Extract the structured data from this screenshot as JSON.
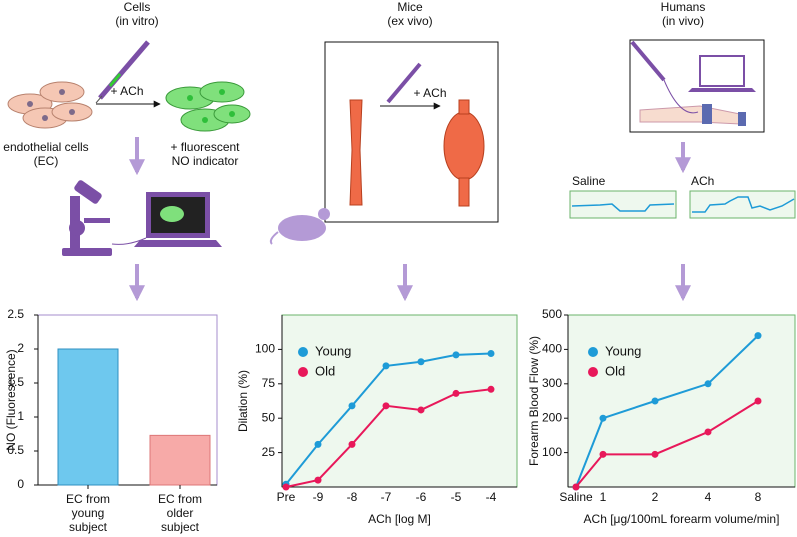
{
  "diagram": {
    "columns": [
      {
        "title": "Cells",
        "subtitle": "(in vitro)"
      },
      {
        "title": "Mice",
        "subtitle": "(ex vivo)"
      },
      {
        "title": "Humans",
        "subtitle": "(in vivo)"
      }
    ],
    "cells": {
      "stimulus": "+ ACh",
      "before_line1": "endothelial cells",
      "before_line2": "(EC)",
      "after_line1": "+ fluorescent",
      "after_line2": "NO indicator"
    },
    "mice": {
      "stimulus": "+ ACh"
    },
    "humans": {
      "trace_left": "Saline",
      "trace_right": "ACh"
    }
  },
  "chart_data": [
    {
      "type": "bar",
      "ylabel": "NO (Fluorescence)",
      "categories": [
        "EC from young subject",
        "EC from older subject"
      ],
      "values": [
        2.0,
        0.73
      ],
      "colors": [
        "#6ec8ee",
        "#f7aaa8"
      ],
      "edge_colors": [
        "#2f8fc0",
        "#d77"
      ],
      "ylim": [
        0,
        2.5
      ],
      "yticks": [
        0,
        0.5,
        1,
        1.5,
        2,
        2.5
      ],
      "background": "#ffffff",
      "border": "#a68ccc"
    },
    {
      "type": "line",
      "xlabel": "ACh [log M]",
      "ylabel": "Dilation (%)",
      "categories": [
        "Pre",
        "-9",
        "-8",
        "-7",
        "-6",
        "-5",
        "-4"
      ],
      "series": [
        {
          "name": "Young",
          "color": "#1e9bd7",
          "values": [
            2,
            31,
            59,
            88,
            91,
            96,
            97
          ]
        },
        {
          "name": "Old",
          "color": "#e8185a",
          "values": [
            0,
            5,
            31,
            59,
            56,
            68,
            71
          ]
        }
      ],
      "ylim": [
        0,
        125
      ],
      "yticks": [
        25,
        50,
        75,
        100
      ],
      "background": "#eef8ee",
      "border": "#6bb36b",
      "legend": "upper left"
    },
    {
      "type": "line",
      "xlabel": "ACh [μg/100mL forearm volume/min]",
      "ylabel": "Forearm Blood Flow (%)",
      "categories": [
        "Saline",
        "1",
        "2",
        "4",
        "8"
      ],
      "series": [
        {
          "name": "Young",
          "color": "#1e9bd7",
          "values": [
            0,
            200,
            250,
            300,
            440
          ]
        },
        {
          "name": "Old",
          "color": "#e8185a",
          "values": [
            0,
            95,
            95,
            160,
            250
          ]
        }
      ],
      "ylim": [
        0,
        500
      ],
      "yticks": [
        100,
        200,
        300,
        400,
        500
      ],
      "background": "#eef8ee",
      "border": "#6bb36b",
      "legend": "upper left"
    }
  ]
}
